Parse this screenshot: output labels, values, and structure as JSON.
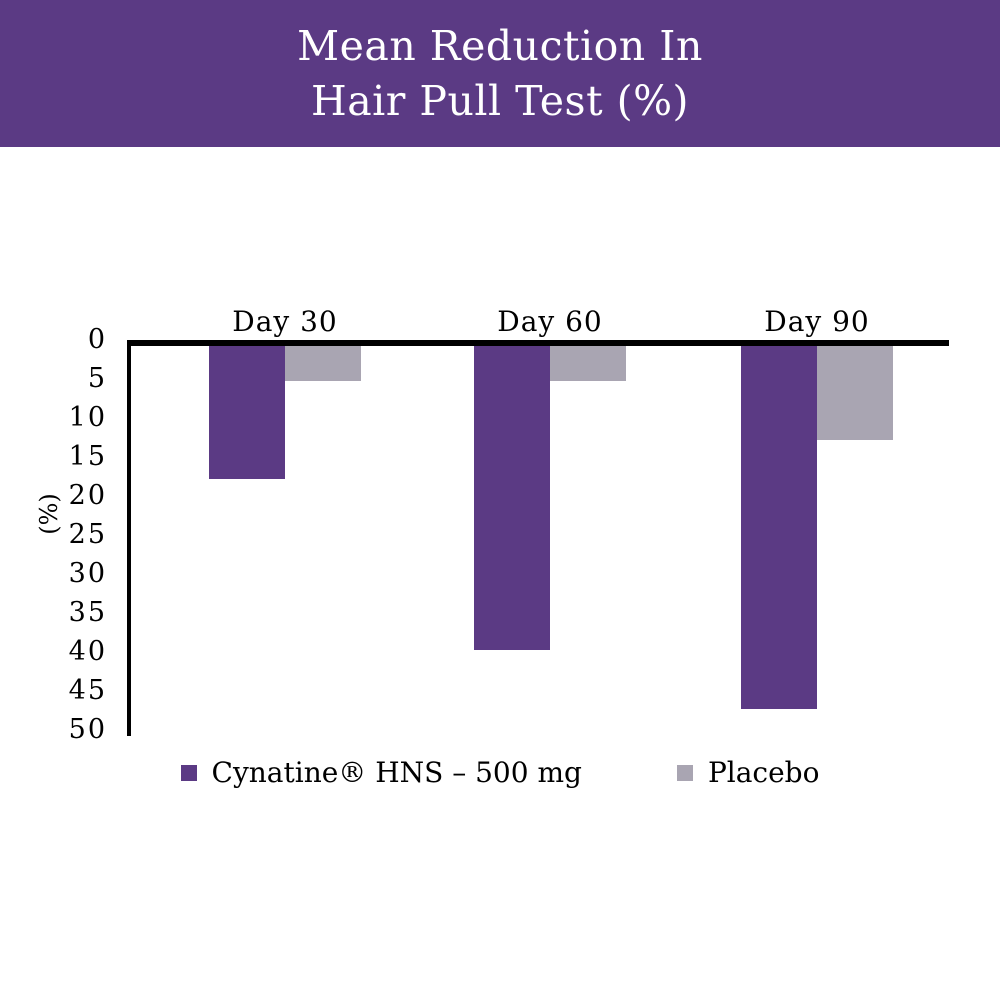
{
  "header": {
    "title": "Mean Reduction In\nHair Pull Test (%)"
  },
  "chart_data": {
    "type": "bar",
    "orientation": "downward",
    "title": "Mean Reduction In Hair Pull Test (%)",
    "categories": [
      "Day 30",
      "Day 60",
      "Day 90"
    ],
    "series": [
      {
        "name": "Cynatine® HNS – 500 mg",
        "color": "#5b3a84",
        "values": [
          17,
          39,
          46.5
        ]
      },
      {
        "name": "Placebo",
        "color": "#a9a5b2",
        "values": [
          4.5,
          4.5,
          12
        ]
      }
    ],
    "xlabel": "",
    "ylabel": "(%)",
    "ylim": [
      0,
      50
    ],
    "yticks": [
      0,
      5,
      10,
      15,
      20,
      25,
      30,
      35,
      40,
      45,
      50
    ],
    "grid": false,
    "legend_position": "bottom"
  },
  "colors": {
    "header_bg": "#5b3a84",
    "axis": "#000000",
    "background": "#ffffff"
  }
}
